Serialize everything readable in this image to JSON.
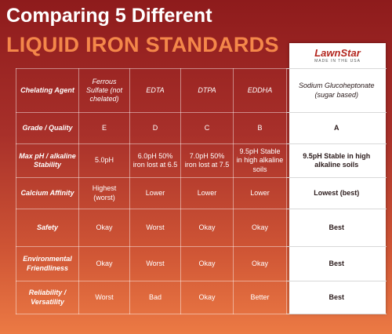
{
  "header": {
    "title_line1": "Comparing 5 Different",
    "title_line2": "LIQUID IRON STANDARDS"
  },
  "logo": {
    "name": "LawnStar",
    "tagline": "MADE IN THE USA"
  },
  "table": {
    "columns": [
      "Chelating Agent",
      "Ferrous Sulfate (not chelated)",
      "EDTA",
      "DTPA",
      "EDDHA",
      "Sodium Glucoheptonate (sugar based)"
    ],
    "rows": [
      [
        "Grade / Quality",
        "E",
        "D",
        "C",
        "B",
        "A"
      ],
      [
        "Max pH / alkaline Stability",
        "5.0pH",
        "6.0pH 50% iron lost at 6.5",
        "7.0pH 50% iron lost at 7.5",
        "9.5pH Stable in high alkaline soils",
        "9.5pH Stable in high alkaline soils"
      ],
      [
        "Calcium Affinity",
        "Highest (worst)",
        "Lower",
        "Lower",
        "Lower",
        "Lowest (best)"
      ],
      [
        "Safety",
        "Okay",
        "Worst",
        "Okay",
        "Okay",
        "Best"
      ],
      [
        "Environmental Friendliness",
        "Okay",
        "Worst",
        "Okay",
        "Okay",
        "Best"
      ],
      [
        "Reliability / Versatility",
        "Worst",
        "Bad",
        "Okay",
        "Better",
        "Best"
      ]
    ]
  }
}
